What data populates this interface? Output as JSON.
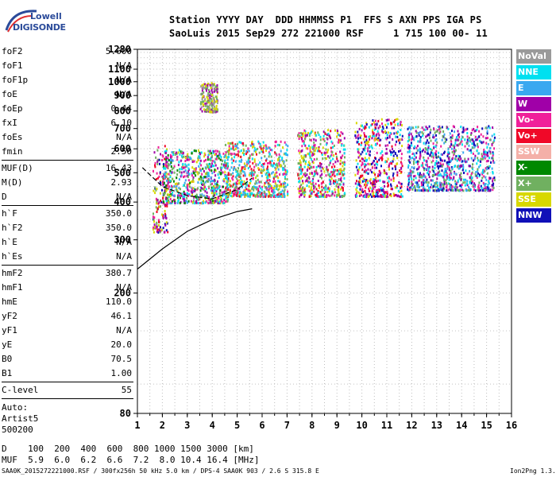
{
  "logo": {
    "brand": "Lowell",
    "product": "DIGISONDE"
  },
  "header": {
    "line1": "Station YYYY DAY  DDD HHMMSS P1  FFS S AXN PPS IGA PS",
    "line2": "SaoLuis 2015 Sep29 272 221000 RSF     1 715 100 00- 11"
  },
  "params": {
    "group1": [
      {
        "k": "foF2",
        "v": "5.600"
      },
      {
        "k": "foF1",
        "v": "N/A"
      },
      {
        "k": "foF1p",
        "v": "N/A"
      },
      {
        "k": "foE",
        "v": "N/A"
      },
      {
        "k": "foEp",
        "v": "0.44"
      },
      {
        "k": "fxI",
        "v": "6.10"
      },
      {
        "k": "foEs",
        "v": "N/A"
      },
      {
        "k": "fmin",
        "v": "2.50"
      }
    ],
    "group2": [
      {
        "k": "MUF(D)",
        "v": "16.43"
      },
      {
        "k": "M(D)",
        "v": "2.93"
      },
      {
        "k": "D",
        "v": "N/A"
      }
    ],
    "group3": [
      {
        "k": "h`F",
        "v": "350.0"
      },
      {
        "k": "h`F2",
        "v": "350.0"
      },
      {
        "k": "h`E",
        "v": "N/A"
      },
      {
        "k": "h`Es",
        "v": "N/A"
      }
    ],
    "group4": [
      {
        "k": "hmF2",
        "v": "380.7"
      },
      {
        "k": "hmF1",
        "v": "N/A"
      },
      {
        "k": "hmE",
        "v": "110.0"
      },
      {
        "k": "yF2",
        "v": "46.1"
      },
      {
        "k": "yF1",
        "v": "N/A"
      },
      {
        "k": "yE",
        "v": "20.0"
      },
      {
        "k": "B0",
        "v": "70.5"
      },
      {
        "k": "B1",
        "v": "1.00"
      }
    ],
    "clevel": {
      "k": "C-level",
      "v": "55"
    },
    "auto": [
      "Auto:",
      "Artist5",
      "500200"
    ]
  },
  "legend": [
    {
      "label": "NoVal",
      "color": "#9a9a9a"
    },
    {
      "label": "NNE",
      "color": "#00e0f0"
    },
    {
      "label": "E",
      "color": "#3aa8f0"
    },
    {
      "label": "W",
      "color": "#a000a8"
    },
    {
      "label": "Vo-",
      "color": "#f0209a"
    },
    {
      "label": "Vo+",
      "color": "#f00828"
    },
    {
      "label": "SSW",
      "color": "#f4b0a8"
    },
    {
      "label": "X-",
      "color": "#008800"
    },
    {
      "label": "X+",
      "color": "#70b060"
    },
    {
      "label": "SSE",
      "color": "#d8d800"
    },
    {
      "label": "NNW",
      "color": "#1010b8"
    }
  ],
  "muf_table": {
    "line1": "D    100  200  400  600  800 1000 1500 3000 [km]",
    "line2": "MUF  5.9  6.0  6.2  6.6  7.2  8.0 10.4 16.4 [MHz]"
  },
  "footer": {
    "left": "SAA0K_2015272221000.RSF / 300fx256h 50 kHz 5.0 km / DPS-4 SAA0K 903 / 2.6 S 315.8 E",
    "right": "Ion2Png 1.3.17"
  },
  "chart_data": {
    "type": "scatter",
    "title": "",
    "xlabel": "",
    "ylabel": "",
    "xlim": [
      1,
      16
    ],
    "ylim": [
      80,
      1280
    ],
    "yscale": "log",
    "x_ticks": [
      "1",
      "2",
      "3",
      "4",
      "5",
      "6",
      "7",
      "8",
      "9",
      "10",
      "11",
      "12",
      "13",
      "14",
      "15",
      "16"
    ],
    "y_ticks": [
      80,
      200,
      300,
      400,
      500,
      600,
      700,
      800,
      900,
      1000,
      1100,
      1280
    ],
    "grid": true,
    "series_note": "dense echo returns colored by direction (see legend)",
    "echo_clusters": [
      {
        "f": [
          1.6,
          2.2
        ],
        "h": [
          320,
          620
        ],
        "colors": [
          "W",
          "Vo-",
          "Vo+",
          "NNW",
          "X+",
          "SSE"
        ]
      },
      {
        "f": [
          2.0,
          4.6
        ],
        "h": [
          400,
          600
        ],
        "colors": [
          "W",
          "Vo-",
          "X-",
          "X+",
          "SSE",
          "NNE",
          "E"
        ]
      },
      {
        "f": [
          3.5,
          4.2
        ],
        "h": [
          800,
          1000
        ],
        "colors": [
          "SSE",
          "X+",
          "W",
          "NoVal"
        ]
      },
      {
        "f": [
          4.5,
          7.0
        ],
        "h": [
          420,
          640
        ],
        "colors": [
          "SSE",
          "Vo-",
          "Vo+",
          "X+",
          "E",
          "NNE"
        ]
      },
      {
        "f": [
          7.4,
          9.3
        ],
        "h": [
          420,
          700
        ],
        "colors": [
          "SSE",
          "X+",
          "Vo+",
          "Vo-",
          "W",
          "NNE"
        ]
      },
      {
        "f": [
          9.7,
          11.6
        ],
        "h": [
          420,
          760
        ],
        "colors": [
          "Vo-",
          "Vo+",
          "W",
          "SSE",
          "NNW",
          "NNE"
        ]
      },
      {
        "f": [
          11.8,
          15.3
        ],
        "h": [
          440,
          720
        ],
        "colors": [
          "NNE",
          "E",
          "Vo-",
          "W",
          "NNW",
          "X+"
        ]
      }
    ],
    "profile_curve": {
      "f": [
        1.0,
        2.0,
        3.0,
        4.0,
        5.0,
        5.6
      ],
      "h": [
        240,
        280,
        320,
        350,
        372,
        380
      ]
    },
    "virtual_trace": {
      "f": [
        1.2,
        2.0,
        3.0,
        4.0,
        5.0,
        5.6
      ],
      "h": [
        520,
        450,
        420,
        410,
        440,
        480
      ]
    }
  }
}
